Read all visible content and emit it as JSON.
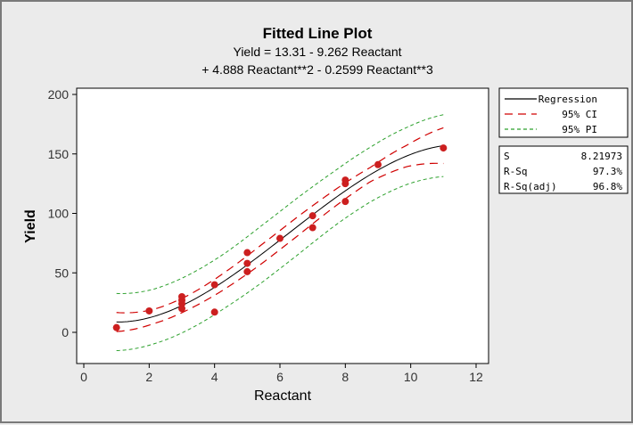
{
  "chart_data": {
    "type": "scatter",
    "title": "Fitted Line Plot",
    "subtitle_line1": "Yield =  13.31 - 9.262 Reactant",
    "subtitle_line2": "+ 4.888 Reactant**2 - 0.2599 Reactant**3",
    "xlabel": "Reactant",
    "ylabel": "Yield",
    "xlim": [
      0,
      12
    ],
    "ylim": [
      -25,
      205
    ],
    "xticks": [
      0,
      2,
      4,
      6,
      8,
      10,
      12
    ],
    "yticks": [
      0,
      50,
      100,
      150,
      200
    ],
    "grid": false,
    "legend_position": "right",
    "fit": {
      "model": "cubic",
      "coefficients": [
        13.31,
        -9.262,
        4.888,
        -0.2599
      ],
      "x_range": [
        1,
        11
      ]
    },
    "points": [
      {
        "x": 1,
        "y": 4
      },
      {
        "x": 2,
        "y": 18
      },
      {
        "x": 3,
        "y": 20
      },
      {
        "x": 3,
        "y": 24
      },
      {
        "x": 3,
        "y": 27
      },
      {
        "x": 3,
        "y": 30
      },
      {
        "x": 4,
        "y": 17
      },
      {
        "x": 4,
        "y": 40
      },
      {
        "x": 5,
        "y": 51
      },
      {
        "x": 5,
        "y": 58
      },
      {
        "x": 5,
        "y": 67
      },
      {
        "x": 6,
        "y": 79
      },
      {
        "x": 7,
        "y": 88
      },
      {
        "x": 7,
        "y": 98
      },
      {
        "x": 8,
        "y": 110
      },
      {
        "x": 8,
        "y": 125
      },
      {
        "x": 8,
        "y": 128
      },
      {
        "x": 9,
        "y": 141
      },
      {
        "x": 11,
        "y": 155
      }
    ],
    "ci_half_width": [
      8,
      6,
      6,
      7,
      8,
      8,
      7,
      6,
      9,
      15
    ],
    "pi_half_width": [
      24,
      23,
      23,
      23,
      24,
      24,
      23,
      23,
      24,
      26
    ],
    "legend": [
      {
        "label": "Regression",
        "color": "#000000",
        "dash": "solid"
      },
      {
        "label": "95% CI",
        "color": "#d00000",
        "dash": "long-dash"
      },
      {
        "label": "95% PI",
        "color": "#2ca02c",
        "dash": "short-dash"
      }
    ],
    "stats": [
      {
        "label": "S",
        "value": "8.21973"
      },
      {
        "label": "R-Sq",
        "value": "97.3%"
      },
      {
        "label": "R-Sq(adj)",
        "value": "96.8%"
      }
    ],
    "colors": {
      "point": "#cc1f1f",
      "fit": "#000000",
      "ci": "#d00000",
      "pi": "#2ca02c",
      "plot_bg": "#ffffff",
      "figure_bg": "#ebebeb"
    }
  }
}
